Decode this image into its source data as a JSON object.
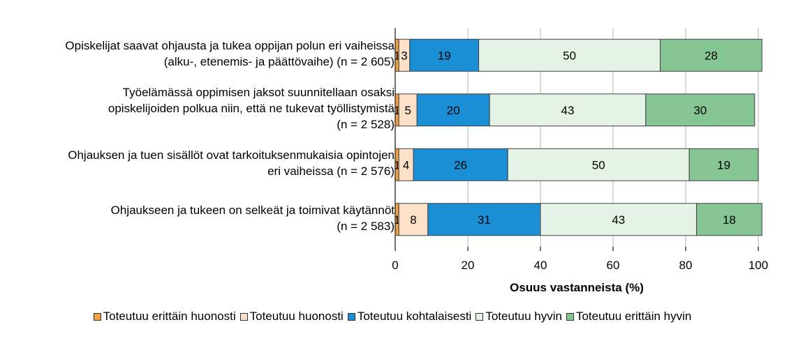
{
  "chart_data": {
    "type": "bar",
    "orientation": "horizontal",
    "stacked": true,
    "categories": [
      [
        "Opiskelijat saavat ohjausta ja tukea oppijan polun eri vaiheissa",
        "(alku-, etenemis- ja päättövaihe) (n = 2 605)"
      ],
      [
        "Työelämässä oppimisen jaksot suunnitellaan osaksi",
        "opiskelijoiden polkua niin, että ne tukevat työllistymistä",
        "(n = 2 528)"
      ],
      [
        "Ohjauksen ja tuen sisällöt ovat tarkoituksenmukaisia opintojen",
        "eri vaiheissa (n = 2 576)"
      ],
      [
        "Ohjaukseen ja tukeen on selkeät ja toimivat käytännöt",
        "(n = 2 583)"
      ]
    ],
    "series": [
      {
        "name": "Toteutuu erittäin huonosti",
        "color": "#f0a040",
        "values": [
          1,
          1,
          1,
          1
        ]
      },
      {
        "name": "Toteutuu huonosti",
        "color": "#fce0c8",
        "values": [
          3,
          5,
          4,
          8
        ]
      },
      {
        "name": "Toteutuu kohtalaisesti",
        "color": "#1b8fd6",
        "values": [
          19,
          20,
          26,
          31
        ]
      },
      {
        "name": "Toteutuu hyvin",
        "color": "#e4f3e6",
        "values": [
          50,
          43,
          50,
          43
        ]
      },
      {
        "name": "Toteutuu erittäin hyvin",
        "color": "#86c594",
        "values": [
          28,
          30,
          19,
          18
        ]
      }
    ],
    "xlabel": "Osuus vastanneista (%)",
    "xlim": [
      0,
      100
    ],
    "xticks": [
      0,
      20,
      40,
      60,
      80,
      100
    ],
    "grid": true,
    "legend_position": "bottom"
  }
}
